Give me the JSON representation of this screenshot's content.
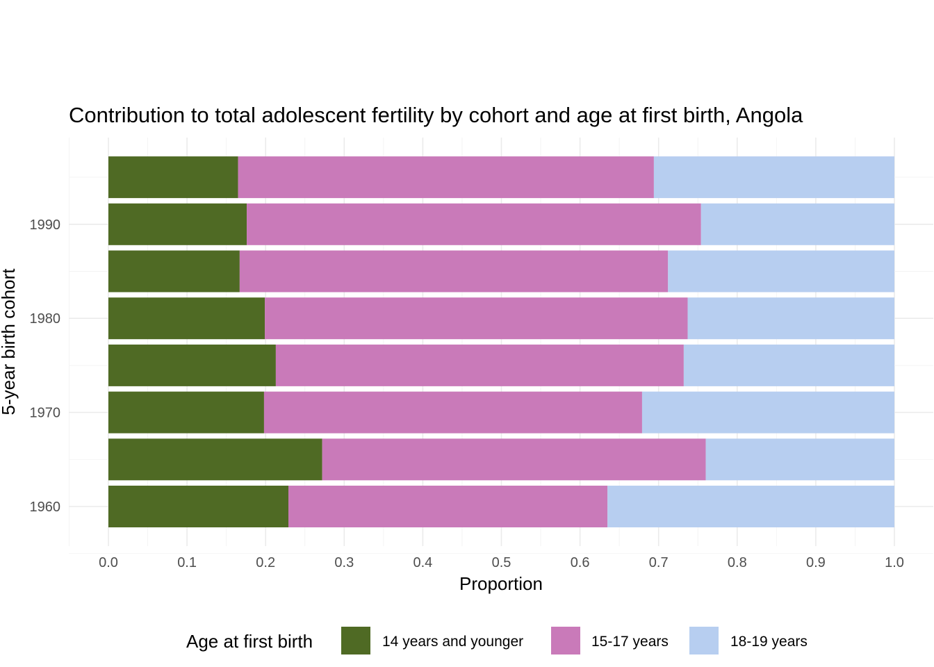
{
  "chart_data": {
    "type": "bar",
    "orientation": "horizontal",
    "stacked": true,
    "title": "Contribution to total adolescent fertility by cohort and age at first birth,  Angola",
    "xlabel": "Proportion",
    "ylabel": "5-year birth cohort",
    "xlim": [
      0,
      1
    ],
    "x_ticks": [
      "0.0",
      "0.1",
      "0.2",
      "0.3",
      "0.4",
      "0.5",
      "0.6",
      "0.7",
      "0.8",
      "0.9",
      "1.0"
    ],
    "categories": [
      1960,
      1965,
      1970,
      1975,
      1980,
      1985,
      1990,
      1995
    ],
    "y_tick_labels": [
      {
        "category": 1960,
        "label": "1960"
      },
      {
        "category": 1970,
        "label": "1970"
      },
      {
        "category": 1980,
        "label": "1980"
      },
      {
        "category": 1990,
        "label": "1990"
      }
    ],
    "series": [
      {
        "name": "14 years and younger",
        "color": "#4f6a24",
        "values": [
          0.229,
          0.272,
          0.198,
          0.213,
          0.199,
          0.167,
          0.176,
          0.165
        ]
      },
      {
        "name": "15-17 years",
        "color": "#c97ab9",
        "values": [
          0.406,
          0.488,
          0.481,
          0.519,
          0.538,
          0.545,
          0.578,
          0.529
        ]
      },
      {
        "name": "18-19 years",
        "color": "#b7cef0",
        "values": [
          0.365,
          0.24,
          0.321,
          0.268,
          0.263,
          0.288,
          0.246,
          0.306
        ]
      }
    ],
    "grid": true,
    "legend": {
      "title": "Age at first birth",
      "position": "bottom"
    }
  }
}
